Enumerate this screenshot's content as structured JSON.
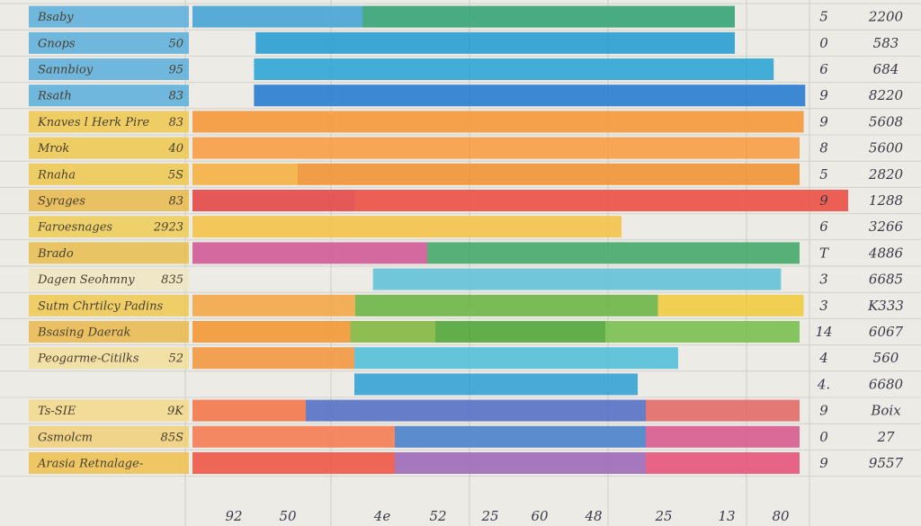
{
  "chart_data": {
    "type": "bar",
    "title": "",
    "xlabel": "",
    "ylabel": "",
    "grid": true,
    "stacked": true,
    "x_tick_labels": [
      "92",
      "50",
      "4e",
      "52",
      "25",
      "60",
      "48",
      "25",
      "13",
      "80"
    ],
    "rows": [
      {
        "label": "Bsaby",
        "num": "5",
        "val": "2200",
        "label_color": "#5aaedc",
        "segments": [
          {
            "start": 0,
            "end": 0.21,
            "color": "#4aa6d6"
          },
          {
            "start": 0.21,
            "end": 0.67,
            "color": "#39a57a"
          }
        ]
      },
      {
        "label": "Gnops",
        "value_label": "50",
        "num": "0",
        "val": "583",
        "label_color": "#5aaedc",
        "segments": [
          {
            "start": 0.078,
            "end": 0.67,
            "color": "#2e9fd2"
          }
        ]
      },
      {
        "label": "Sannbioy",
        "value_label": "95",
        "num": "6",
        "val": "684",
        "label_color": "#5aaedc",
        "segments": [
          {
            "start": 0.076,
            "end": 0.718,
            "color": "#33a8d6"
          }
        ]
      },
      {
        "label": "Rsath",
        "value_label": "83",
        "num": "9",
        "val": "8220",
        "label_color": "#5aaedc",
        "segments": [
          {
            "start": 0.076,
            "end": 0.757,
            "color": "#2d7fd0"
          }
        ]
      },
      {
        "label": "Knaves l Herk Pire",
        "value_label": "83",
        "num": "9",
        "val": "5608",
        "label_color": "#f0c84e",
        "segments": [
          {
            "start": 0,
            "end": 0.755,
            "color": "#f59a3e"
          }
        ]
      },
      {
        "label": "Mrok",
        "value_label": "40",
        "num": "8",
        "val": "5600",
        "label_color": "#f0c84e",
        "segments": [
          {
            "start": 0,
            "end": 0.75,
            "color": "#f6a048"
          }
        ]
      },
      {
        "label": "Rnaha",
        "value_label": "5S",
        "num": "5",
        "val": "2820",
        "label_color": "#f0c84e",
        "segments": [
          {
            "start": 0,
            "end": 0.13,
            "color": "#f5b248"
          },
          {
            "start": 0.13,
            "end": 0.75,
            "color": "#f1953a"
          }
        ]
      },
      {
        "label": "Syrages",
        "value_label": "83",
        "num": "9",
        "val": "1288",
        "label_color": "#e9b84a",
        "segments": [
          {
            "start": 0,
            "end": 0.2,
            "color": "#e34c4c"
          },
          {
            "start": 0.2,
            "end": 0.81,
            "color": "#ea5248"
          }
        ]
      },
      {
        "label": "Faroesnages",
        "value_label": "2923",
        "num": "6",
        "val": "3266",
        "label_color": "#f0cc56",
        "segments": [
          {
            "start": 0,
            "end": 0.53,
            "color": "#f3c34d"
          }
        ]
      },
      {
        "label": "Brado",
        "num": "T",
        "val": "4886",
        "label_color": "#e9bd4c",
        "segments": [
          {
            "start": 0,
            "end": 0.29,
            "color": "#d15d9a"
          },
          {
            "start": 0.29,
            "end": 0.75,
            "color": "#4aaa6e"
          }
        ]
      },
      {
        "label": "Dagen Seohmny",
        "value_label": "835",
        "num": "3",
        "val": "6685",
        "label_color": "#f0e6c0",
        "segments": [
          {
            "start": 0.223,
            "end": 0.727,
            "color": "#66c3d8"
          }
        ]
      },
      {
        "label": "Sutm Chrtilcy Padins",
        "num": "3",
        "val": "K333",
        "label_color": "#f0c850",
        "segments": [
          {
            "start": 0,
            "end": 0.201,
            "color": "#f3a94b"
          },
          {
            "start": 0.201,
            "end": 0.575,
            "color": "#70b64c"
          },
          {
            "start": 0.575,
            "end": 0.755,
            "color": "#f0cc45"
          }
        ]
      },
      {
        "label": "Bsasing Daerak",
        "num": "14",
        "val": "6067",
        "label_color": "#eab84a",
        "segments": [
          {
            "start": 0,
            "end": 0.195,
            "color": "#f39a3c"
          },
          {
            "start": 0.195,
            "end": 0.3,
            "color": "#86b844"
          },
          {
            "start": 0.3,
            "end": 0.51,
            "color": "#56a83e"
          },
          {
            "start": 0.51,
            "end": 0.75,
            "color": "#7cc052"
          }
        ]
      },
      {
        "label": "Peogarme-Citilks",
        "value_label": "52",
        "num": "4",
        "val": "560",
        "label_color": "#f3df9a",
        "segments": [
          {
            "start": 0,
            "end": 0.2,
            "color": "#f29a46"
          },
          {
            "start": 0.2,
            "end": 0.6,
            "color": "#58c0d8"
          }
        ]
      },
      {
        "label": "",
        "num": "4.",
        "val": "6680",
        "label_color": "#ecebe6",
        "segments": [
          {
            "start": 0.2,
            "end": 0.55,
            "color": "#38a4d6"
          }
        ]
      },
      {
        "label": "Ts-SIE",
        "value_label": "9K",
        "num": "9",
        "val": "Boix",
        "label_color": "#f3d98a",
        "segments": [
          {
            "start": 0,
            "end": 0.14,
            "color": "#f27a4e"
          },
          {
            "start": 0.14,
            "end": 0.56,
            "color": "#5a74c8"
          },
          {
            "start": 0.56,
            "end": 0.75,
            "color": "#e36e6a"
          }
        ]
      },
      {
        "label": "Gsmolcm",
        "value_label": "85S",
        "num": "0",
        "val": "27",
        "label_color": "#f0d078",
        "segments": [
          {
            "start": 0,
            "end": 0.25,
            "color": "#f47f58"
          },
          {
            "start": 0.25,
            "end": 0.56,
            "color": "#4e84cc"
          },
          {
            "start": 0.56,
            "end": 0.75,
            "color": "#d85f92"
          }
        ]
      },
      {
        "label": "Arasia Retnalage-",
        "num": "9",
        "val": "9557",
        "label_color": "#efc14c",
        "segments": [
          {
            "start": 0,
            "end": 0.25,
            "color": "#ed5a4a"
          },
          {
            "start": 0.25,
            "end": 0.56,
            "color": "#9e6cb8"
          },
          {
            "start": 0.56,
            "end": 0.75,
            "color": "#e6587e"
          }
        ]
      }
    ]
  }
}
